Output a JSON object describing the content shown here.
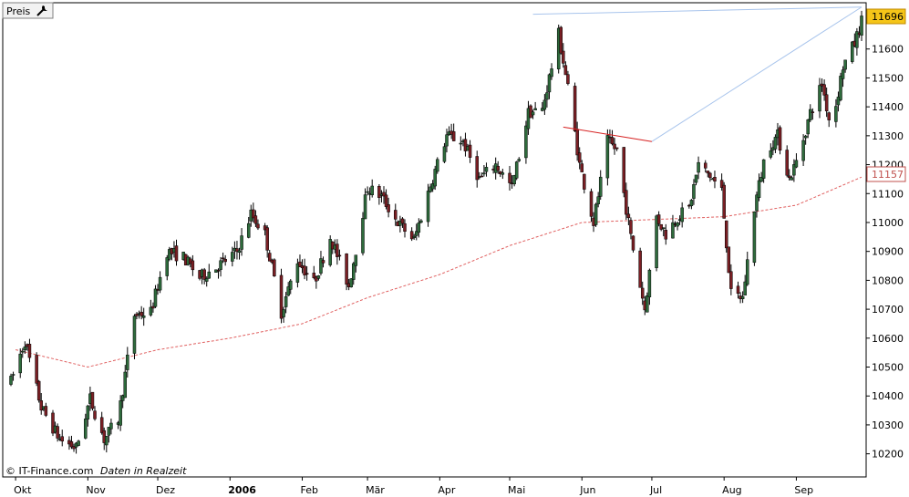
{
  "header": {
    "series_label": "Preis",
    "settings_icon": "wrench-icon"
  },
  "credit": {
    "copyright": "© IT-Finance.com",
    "note": "Daten in Realzeit"
  },
  "colors": {
    "up_candle": "#2e6b3c",
    "down_candle": "#7a1f24",
    "wick": "#000000",
    "moving_average": "#e06060",
    "trendline_blue": "#a8c4ec",
    "trendline_red": "#d62020",
    "last_price_tag_bg": "#f5c518",
    "ma_tag_text": "#c0504d",
    "frame": "#000000"
  },
  "chart_data": {
    "type": "candlestick",
    "ylim": [
      10120,
      11760
    ],
    "y_ticks": [
      "10200",
      "10300",
      "10400",
      "10500",
      "10600",
      "10700",
      "10800",
      "10900",
      "11000",
      "11100",
      "11200",
      "11300",
      "11400",
      "11500",
      "11600"
    ],
    "x_labels": [
      "Okt",
      "Nov",
      "Dez",
      "2006",
      "Feb",
      "Mär",
      "Apr",
      "Mai",
      "Jun",
      "Jul",
      "Aug",
      "Sep"
    ],
    "x_label_bold": [
      false,
      false,
      false,
      true,
      false,
      false,
      false,
      false,
      false,
      false,
      false,
      false
    ],
    "x_label_dates": [
      "2005-10-01",
      "2005-11-01",
      "2005-12-01",
      "2006-01-01",
      "2006-02-01",
      "2006-03-01",
      "2006-04-01",
      "2006-05-01",
      "2006-06-01",
      "2006-07-01",
      "2006-08-01",
      "2006-09-01"
    ],
    "x_range": [
      "2005-09-29",
      "2006-09-29"
    ],
    "last_price": "11696",
    "ma_last": "11157",
    "grid": false,
    "candle_anchors": [
      [
        "2005-09-29",
        10450
      ],
      [
        "2005-10-05",
        10590
      ],
      [
        "2005-10-12",
        10360
      ],
      [
        "2005-10-20",
        10250
      ],
      [
        "2005-10-27",
        10220
      ],
      [
        "2005-11-02",
        10390
      ],
      [
        "2005-11-08",
        10250
      ],
      [
        "2005-11-14",
        10320
      ],
      [
        "2005-11-21",
        10680
      ],
      [
        "2005-11-28",
        10690
      ],
      [
        "2005-12-05",
        10900
      ],
      [
        "2005-12-12",
        10880
      ],
      [
        "2005-12-19",
        10810
      ],
      [
        "2005-12-27",
        10850
      ],
      [
        "2006-01-04",
        10900
      ],
      [
        "2006-01-10",
        11030
      ],
      [
        "2006-01-16",
        10960
      ],
      [
        "2006-01-23",
        10690
      ],
      [
        "2006-01-30",
        10870
      ],
      [
        "2006-02-06",
        10790
      ],
      [
        "2006-02-13",
        10950
      ],
      [
        "2006-02-21",
        10780
      ],
      [
        "2006-03-01",
        11120
      ],
      [
        "2006-03-07",
        11090
      ],
      [
        "2006-03-14",
        11000
      ],
      [
        "2006-03-21",
        10940
      ],
      [
        "2006-03-28",
        11130
      ],
      [
        "2006-04-04",
        11300
      ],
      [
        "2006-04-11",
        11280
      ],
      [
        "2006-04-18",
        11150
      ],
      [
        "2006-04-25",
        11200
      ],
      [
        "2006-05-02",
        11120
      ],
      [
        "2006-05-09",
        11380
      ],
      [
        "2006-05-15",
        11390
      ],
      [
        "2006-05-22",
        11650
      ],
      [
        "2006-05-27",
        11420
      ],
      [
        "2006-05-31",
        11200
      ],
      [
        "2006-06-06",
        11000
      ],
      [
        "2006-06-12",
        11280
      ],
      [
        "2006-06-16",
        11250
      ],
      [
        "2006-06-22",
        10950
      ],
      [
        "2006-06-28",
        10700
      ],
      [
        "2006-07-03",
        11020
      ],
      [
        "2006-07-07",
        10960
      ],
      [
        "2006-07-12",
        11020
      ],
      [
        "2006-07-17",
        11050
      ],
      [
        "2006-07-21",
        11200
      ],
      [
        "2006-07-26",
        11160
      ],
      [
        "2006-07-31",
        11110
      ],
      [
        "2006-08-04",
        10750
      ],
      [
        "2006-08-09",
        10740
      ],
      [
        "2006-08-14",
        11050
      ],
      [
        "2006-08-19",
        11250
      ],
      [
        "2006-08-24",
        11300
      ],
      [
        "2006-08-29",
        11150
      ],
      [
        "2006-09-02",
        11230
      ],
      [
        "2006-09-07",
        11380
      ],
      [
        "2006-09-12",
        11480
      ],
      [
        "2006-09-16",
        11320
      ],
      [
        "2006-09-21",
        11540
      ],
      [
        "2006-09-26",
        11620
      ],
      [
        "2006-09-29",
        11696
      ]
    ],
    "moving_average_anchors": [
      [
        "2005-10-01",
        10560
      ],
      [
        "2005-11-01",
        10500
      ],
      [
        "2005-12-01",
        10560
      ],
      [
        "2006-01-01",
        10600
      ],
      [
        "2006-02-01",
        10650
      ],
      [
        "2006-03-01",
        10740
      ],
      [
        "2006-04-01",
        10820
      ],
      [
        "2006-05-01",
        10920
      ],
      [
        "2006-06-01",
        11000
      ],
      [
        "2006-07-01",
        11010
      ],
      [
        "2006-08-01",
        11020
      ],
      [
        "2006-09-01",
        11060
      ],
      [
        "2006-09-29",
        11157
      ]
    ],
    "trendlines": [
      {
        "color": "blue",
        "from": [
          "2006-05-11",
          11720
        ],
        "to": [
          "2006-09-29",
          11745
        ]
      },
      {
        "color": "blue",
        "from": [
          "2006-07-01",
          11280
        ],
        "to": [
          "2006-09-29",
          11745
        ]
      },
      {
        "color": "red",
        "from": [
          "2006-05-24",
          11330
        ],
        "to": [
          "2006-07-01",
          11280
        ]
      }
    ]
  }
}
